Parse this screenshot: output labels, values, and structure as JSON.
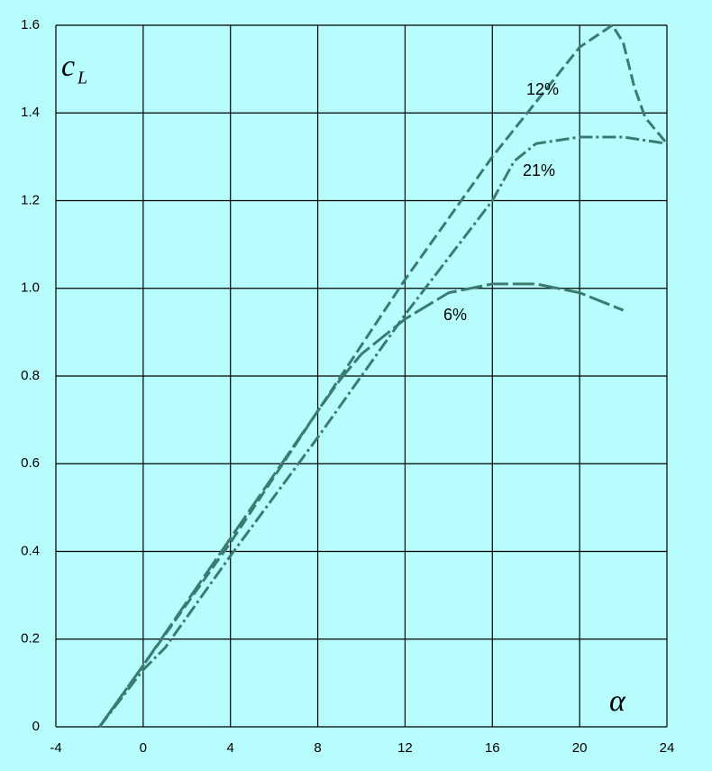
{
  "chart_data": {
    "type": "line",
    "xlabel": "α",
    "ylabel": "c",
    "ylabel_subscript": "L",
    "xlim": [
      -4,
      24
    ],
    "xticks": [
      -4,
      0,
      4,
      8,
      12,
      16,
      20,
      24
    ],
    "ylim": [
      0,
      1.6
    ],
    "yticks": [
      0,
      0.2,
      0.4,
      0.6,
      0.8,
      {
        "value": 1,
        "label": "1.0"
      },
      1.2,
      1.4,
      1.6
    ],
    "grid": true,
    "series": [
      {
        "name": "12%",
        "color": "#3b7c72",
        "dash": "dashed",
        "x": [
          -2,
          0,
          4,
          8,
          12,
          16,
          20,
          21.5,
          22,
          22.5,
          23,
          24
        ],
        "values": [
          0,
          0.14,
          0.42,
          0.72,
          1.02,
          1.3,
          1.55,
          1.6,
          1.56,
          1.46,
          1.39,
          1.33
        ]
      },
      {
        "name": "21%",
        "color": "#3b7c72",
        "dash": "dash-dot",
        "x": [
          -2,
          0,
          1,
          4,
          8,
          12,
          16,
          17,
          18,
          20,
          22,
          24
        ],
        "values": [
          0,
          0.13,
          0.18,
          0.39,
          0.66,
          0.94,
          1.2,
          1.29,
          1.33,
          1.345,
          1.345,
          1.33
        ]
      },
      {
        "name": "6%",
        "color": "#3b7c72",
        "dash": "long-dash",
        "x": [
          -2,
          0,
          4,
          8,
          9,
          10,
          12,
          14,
          16,
          18,
          20,
          22
        ],
        "values": [
          0,
          0.14,
          0.43,
          0.72,
          0.79,
          0.85,
          0.93,
          0.99,
          1.01,
          1.01,
          0.99,
          0.95
        ]
      }
    ]
  }
}
